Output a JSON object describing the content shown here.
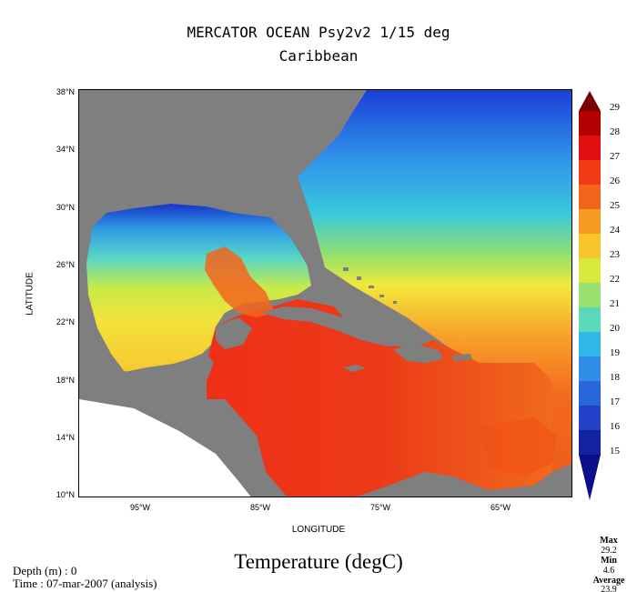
{
  "title": {
    "line1": "MERCATOR OCEAN Psy2v2 1/15 deg",
    "line2": "Caribbean"
  },
  "variable_title": "Temperature (degC)",
  "axes": {
    "x_title": "LONGITUDE",
    "y_title": "LATITUDE",
    "x_ticks": [
      "95°W",
      "85°W",
      "75°W",
      "65°W"
    ],
    "y_ticks": [
      "38°N",
      "34°N",
      "30°N",
      "26°N",
      "22°N",
      "18°N",
      "14°N",
      "10°N"
    ],
    "lon_range": [
      -100,
      -60
    ],
    "lat_range": [
      9,
      38
    ]
  },
  "footer": {
    "depth": "Depth (m) : 0",
    "time": "Time : 07-mar-2007 (analysis)"
  },
  "colorbar": {
    "labels": [
      "29",
      "28",
      "27",
      "26",
      "25",
      "24",
      "23",
      "22",
      "21",
      "20",
      "19",
      "18",
      "17",
      "16",
      "15"
    ],
    "min": 15,
    "max": 29
  },
  "stats": {
    "max_label": "Max",
    "max_value": "29.2",
    "min_label": "Min",
    "min_value": "4.6",
    "avg_label": "Average",
    "avg_value": "23.9"
  },
  "colors": {
    "land": "#7f7f7f",
    "outside": "#ffffff"
  }
}
